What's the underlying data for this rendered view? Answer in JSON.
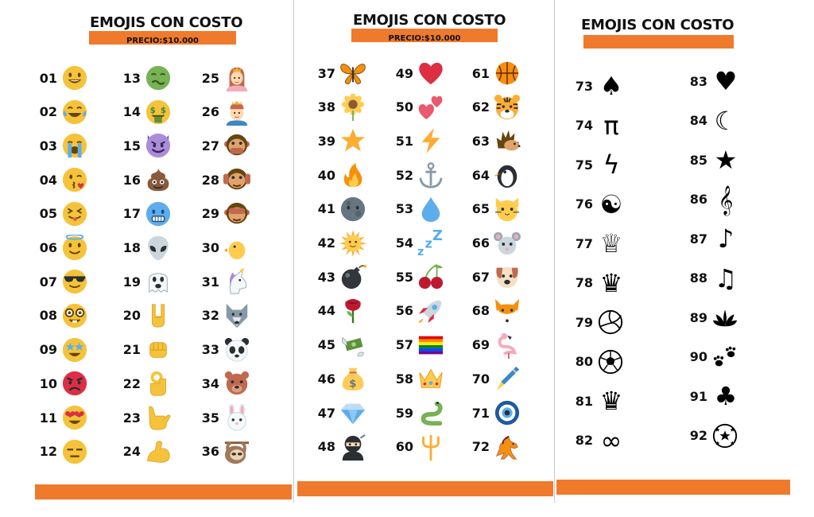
{
  "panels": [
    {
      "title": "EMOJIS CON COSTO",
      "price": "PRECIO:$10.000",
      "items": [
        {
          "n": "01",
          "icon": "grinning-face"
        },
        {
          "n": "02",
          "icon": "tears-of-joy-face"
        },
        {
          "n": "03",
          "icon": "loudly-crying-face"
        },
        {
          "n": "04",
          "icon": "kissing-heart-face"
        },
        {
          "n": "05",
          "icon": "tongue-squint-face"
        },
        {
          "n": "06",
          "icon": "halo-face"
        },
        {
          "n": "07",
          "icon": "sunglasses-face"
        },
        {
          "n": "08",
          "icon": "nerd-face"
        },
        {
          "n": "09",
          "icon": "star-struck-face"
        },
        {
          "n": "10",
          "icon": "angry-red-face"
        },
        {
          "n": "11",
          "icon": "heart-eyes-face"
        },
        {
          "n": "12",
          "icon": "expressionless-face"
        },
        {
          "n": "13",
          "icon": "nauseated-face"
        },
        {
          "n": "14",
          "icon": "money-mouth-face"
        },
        {
          "n": "15",
          "icon": "purple-devil-face"
        },
        {
          "n": "16",
          "icon": "poop"
        },
        {
          "n": "17",
          "icon": "cold-face"
        },
        {
          "n": "18",
          "icon": "alien"
        },
        {
          "n": "19",
          "icon": "ghost"
        },
        {
          "n": "20",
          "icon": "rock-hand"
        },
        {
          "n": "21",
          "icon": "fist"
        },
        {
          "n": "22",
          "icon": "ok-hand"
        },
        {
          "n": "23",
          "icon": "call-me-hand"
        },
        {
          "n": "24",
          "icon": "flexed-biceps"
        },
        {
          "n": "25",
          "icon": "princess"
        },
        {
          "n": "26",
          "icon": "prince"
        },
        {
          "n": "27",
          "icon": "speak-no-evil-monkey"
        },
        {
          "n": "28",
          "icon": "hear-no-evil-monkey"
        },
        {
          "n": "29",
          "icon": "see-no-evil-monkey"
        },
        {
          "n": "30",
          "icon": "baby-chick"
        },
        {
          "n": "31",
          "icon": "unicorn"
        },
        {
          "n": "32",
          "icon": "wolf"
        },
        {
          "n": "33",
          "icon": "panda"
        },
        {
          "n": "34",
          "icon": "bear"
        },
        {
          "n": "35",
          "icon": "rabbit"
        },
        {
          "n": "36",
          "icon": "sloth"
        }
      ]
    },
    {
      "title": "EMOJIS CON COSTO",
      "price": "PRECIO:$10.000",
      "items": [
        {
          "n": "37",
          "icon": "butterfly"
        },
        {
          "n": "38",
          "icon": "sunflower"
        },
        {
          "n": "39",
          "icon": "star"
        },
        {
          "n": "40",
          "icon": "fire"
        },
        {
          "n": "41",
          "icon": "new-moon-face"
        },
        {
          "n": "42",
          "icon": "sun-face"
        },
        {
          "n": "43",
          "icon": "bomb"
        },
        {
          "n": "44",
          "icon": "rose"
        },
        {
          "n": "45",
          "icon": "money-with-wings"
        },
        {
          "n": "46",
          "icon": "money-bag"
        },
        {
          "n": "47",
          "icon": "gem"
        },
        {
          "n": "48",
          "icon": "ninja"
        },
        {
          "n": "49",
          "icon": "red-heart"
        },
        {
          "n": "50",
          "icon": "two-hearts"
        },
        {
          "n": "51",
          "icon": "lightning"
        },
        {
          "n": "52",
          "icon": "anchor"
        },
        {
          "n": "53",
          "icon": "droplet"
        },
        {
          "n": "54",
          "icon": "zzz"
        },
        {
          "n": "55",
          "icon": "cherries"
        },
        {
          "n": "56",
          "icon": "rocket"
        },
        {
          "n": "57",
          "icon": "rainbow-flag"
        },
        {
          "n": "58",
          "icon": "crown"
        },
        {
          "n": "59",
          "icon": "snake"
        },
        {
          "n": "60",
          "icon": "trident"
        },
        {
          "n": "61",
          "icon": "basketball"
        },
        {
          "n": "62",
          "icon": "tiger-face"
        },
        {
          "n": "63",
          "icon": "hedgehog"
        },
        {
          "n": "64",
          "icon": "penguin"
        },
        {
          "n": "65",
          "icon": "cat-face"
        },
        {
          "n": "66",
          "icon": "mouse-face"
        },
        {
          "n": "67",
          "icon": "dog-face"
        },
        {
          "n": "68",
          "icon": "fox-face"
        },
        {
          "n": "69",
          "icon": "flamingo"
        },
        {
          "n": "70",
          "icon": "fountain-pen"
        },
        {
          "n": "71",
          "icon": "nazar-amulet"
        },
        {
          "n": "72",
          "icon": "horse"
        }
      ]
    },
    {
      "title": "EMOJIS CON COSTO",
      "items": [
        {
          "n": "73",
          "icon": "spade-icon",
          "glyph": "♠"
        },
        {
          "n": "74",
          "icon": "pi-icon",
          "glyph": "π"
        },
        {
          "n": "75",
          "icon": "lightning-icon",
          "glyph": "ϟ"
        },
        {
          "n": "76",
          "icon": "yin-yang-icon",
          "glyph": "☯"
        },
        {
          "n": "77",
          "icon": "crown-outline-icon",
          "glyph": "♕"
        },
        {
          "n": "78",
          "icon": "crown-icon",
          "glyph": "♛"
        },
        {
          "n": "79",
          "icon": "volleyball-icon",
          "glyph": ""
        },
        {
          "n": "80",
          "icon": "soccer-ball-icon",
          "glyph": ""
        },
        {
          "n": "81",
          "icon": "queen-chess-icon",
          "glyph": "♛"
        },
        {
          "n": "82",
          "icon": "infinity-icon",
          "glyph": "∞"
        },
        {
          "n": "83",
          "icon": "heart-icon",
          "glyph": "♥"
        },
        {
          "n": "84",
          "icon": "crescent-moon-icon",
          "glyph": "☾"
        },
        {
          "n": "85",
          "icon": "star-icon",
          "glyph": "★"
        },
        {
          "n": "86",
          "icon": "treble-clef-icon",
          "glyph": "𝄞"
        },
        {
          "n": "87",
          "icon": "eighth-note-icon",
          "glyph": "♪"
        },
        {
          "n": "88",
          "icon": "beamed-notes-icon",
          "glyph": "♫"
        },
        {
          "n": "89",
          "icon": "lotus-icon",
          "glyph": ""
        },
        {
          "n": "90",
          "icon": "paw-prints-icon",
          "glyph": ""
        },
        {
          "n": "91",
          "icon": "clover-icon",
          "glyph": "♣"
        },
        {
          "n": "92",
          "icon": "star-ball-icon",
          "glyph": ""
        }
      ]
    }
  ],
  "colors": {
    "accent": "#f07a2c",
    "separator": "#c8c8c8",
    "text": "#111111"
  }
}
